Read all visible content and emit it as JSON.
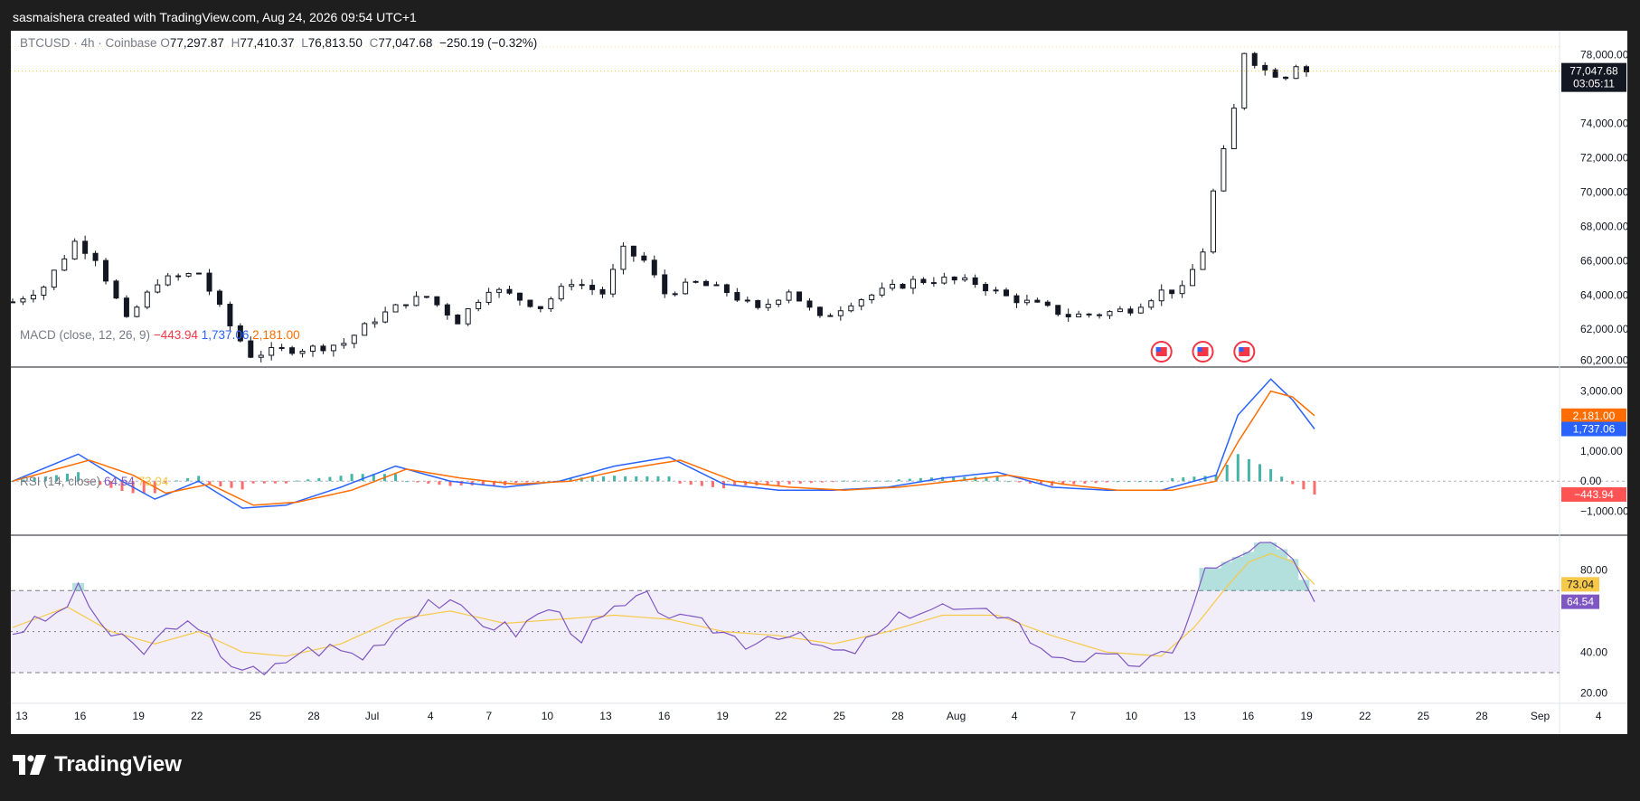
{
  "header": {
    "attribution": "sasmaishera created with TradingView.com, Aug 24, 2026 09:54 UTC+1"
  },
  "brand": {
    "name": "TradingView",
    "icon": "tradingview-logo-icon"
  },
  "legend": {
    "symbol": "BTCUSD · 4h · Coinbase",
    "o_label": "O",
    "o": "77,297.87",
    "h_label": "H",
    "h": "77,410.37",
    "l_label": "L",
    "l": "76,813.50",
    "c_label": "C",
    "c": "77,047.68",
    "change": "−250.19 (−0.32%)"
  },
  "macd_legend": {
    "name": "MACD (close, 12, 26, 9)",
    "hist": "−443.94",
    "macd": "1,737.06",
    "signal": "2,181.00"
  },
  "rsi_legend": {
    "name": "RSI (14, close)",
    "rsi": "64.54",
    "ma": "73.04"
  },
  "colors": {
    "up": "#131722",
    "macd_line": "#2962ff",
    "signal_line": "#ff6d00",
    "hist_pos": "#26a69a",
    "hist_neg": "#ff5252",
    "rsi_line": "#7e57c2",
    "rsi_ma": "#f7c948",
    "last_label": "#131722"
  },
  "chart_data": [
    {
      "type": "candlestick",
      "title": "BTCUSD · 4h · Coinbase",
      "x_ticks": [
        "13",
        "16",
        "19",
        "22",
        "25",
        "28",
        "Jul",
        "4",
        "7",
        "10",
        "13",
        "16",
        "19",
        "22",
        "25",
        "28",
        "Aug",
        "4",
        "7",
        "10",
        "13",
        "16",
        "19",
        "22",
        "25",
        "28",
        "Sep",
        "4"
      ],
      "y_ticks": [
        "60,200.00",
        "62,000.00",
        "64,000.00",
        "66,000.00",
        "68,000.00",
        "70,000.00",
        "72,000.00",
        "74,000.00",
        "78,000.00"
      ],
      "ylim": [
        59800,
        79400
      ],
      "last_price": "77,047.68",
      "countdown": "03:05:11",
      "anchors": [
        [
          0,
          63600
        ],
        [
          3,
          64500
        ],
        [
          6,
          67100
        ],
        [
          8,
          66200
        ],
        [
          11,
          62500
        ],
        [
          14,
          64800
        ],
        [
          18,
          65300
        ],
        [
          21,
          62200
        ],
        [
          23,
          60500
        ],
        [
          26,
          60800
        ],
        [
          29,
          60900
        ],
        [
          32,
          61200
        ],
        [
          35,
          62600
        ],
        [
          38,
          63600
        ],
        [
          40,
          63900
        ],
        [
          43,
          62500
        ],
        [
          46,
          64400
        ],
        [
          48,
          64000
        ],
        [
          51,
          63300
        ],
        [
          54,
          64800
        ],
        [
          57,
          64100
        ],
        [
          59,
          66600
        ],
        [
          61,
          66000
        ],
        [
          63,
          64100
        ],
        [
          66,
          64700
        ],
        [
          69,
          64200
        ],
        [
          72,
          63100
        ],
        [
          75,
          64300
        ],
        [
          78,
          62600
        ],
        [
          81,
          63600
        ],
        [
          84,
          64200
        ],
        [
          87,
          64800
        ],
        [
          90,
          64900
        ],
        [
          93,
          64700
        ],
        [
          96,
          63900
        ],
        [
          99,
          63400
        ],
        [
          102,
          62800
        ],
        [
          105,
          62900
        ],
        [
          108,
          63200
        ],
        [
          111,
          64200
        ],
        [
          113,
          64300
        ],
        [
          115,
          66600
        ],
        [
          116,
          70000
        ],
        [
          117,
          72300
        ],
        [
          118,
          74800
        ],
        [
          119,
          78200
        ],
        [
          120,
          77600
        ],
        [
          121,
          77100
        ],
        [
          122,
          76900
        ],
        [
          123,
          76800
        ],
        [
          124,
          77500
        ],
        [
          125,
          77050
        ]
      ],
      "events": [
        {
          "index": 111,
          "icon": "us-flag-icon"
        },
        {
          "index": 115,
          "icon": "us-flag-icon"
        },
        {
          "index": 119,
          "icon": "us-flag-icon"
        }
      ]
    },
    {
      "type": "line",
      "title": "MACD (close, 12, 26, 9)",
      "y_ticks": [
        "3,000.00",
        "1,000.00",
        "0.00",
        "−1,000.00"
      ],
      "ylim": [
        -1800,
        3800
      ],
      "macd_anchors": [
        [
          0,
          0
        ],
        [
          6,
          900
        ],
        [
          10,
          0
        ],
        [
          13,
          -600
        ],
        [
          17,
          0
        ],
        [
          21,
          -900
        ],
        [
          25,
          -800
        ],
        [
          30,
          -200
        ],
        [
          35,
          500
        ],
        [
          40,
          0
        ],
        [
          45,
          -200
        ],
        [
          50,
          0
        ],
        [
          55,
          500
        ],
        [
          60,
          800
        ],
        [
          65,
          -100
        ],
        [
          70,
          -300
        ],
        [
          75,
          -300
        ],
        [
          80,
          -200
        ],
        [
          85,
          100
        ],
        [
          90,
          300
        ],
        [
          95,
          -200
        ],
        [
          100,
          -300
        ],
        [
          105,
          -300
        ],
        [
          110,
          200
        ],
        [
          112,
          2200
        ],
        [
          115,
          3400
        ],
        [
          117,
          2700
        ],
        [
          119,
          1737
        ]
      ],
      "signal_anchors": [
        [
          0,
          0
        ],
        [
          7,
          700
        ],
        [
          11,
          200
        ],
        [
          14,
          -400
        ],
        [
          18,
          -100
        ],
        [
          22,
          -800
        ],
        [
          26,
          -700
        ],
        [
          31,
          -300
        ],
        [
          36,
          400
        ],
        [
          41,
          100
        ],
        [
          46,
          -100
        ],
        [
          51,
          0
        ],
        [
          56,
          400
        ],
        [
          61,
          700
        ],
        [
          66,
          0
        ],
        [
          71,
          -200
        ],
        [
          76,
          -300
        ],
        [
          81,
          -200
        ],
        [
          86,
          0
        ],
        [
          91,
          200
        ],
        [
          96,
          -100
        ],
        [
          101,
          -300
        ],
        [
          106,
          -300
        ],
        [
          110,
          0
        ],
        [
          112,
          1300
        ],
        [
          115,
          3000
        ],
        [
          117,
          2800
        ],
        [
          119,
          2181
        ]
      ],
      "last_macd": "1,737.06",
      "last_signal": "2,181.00",
      "last_hist": "−443.94"
    },
    {
      "type": "line",
      "title": "RSI (14, close)",
      "y_ticks": [
        "80.00",
        "40.00",
        "20.00"
      ],
      "bands": [
        30,
        50,
        70
      ],
      "ylim": [
        15,
        97
      ],
      "rsi_anchors": [
        [
          0,
          50
        ],
        [
          4,
          58
        ],
        [
          6,
          70
        ],
        [
          9,
          48
        ],
        [
          12,
          40
        ],
        [
          15,
          55
        ],
        [
          18,
          46
        ],
        [
          20,
          35
        ],
        [
          23,
          28
        ],
        [
          26,
          40
        ],
        [
          29,
          42
        ],
        [
          32,
          38
        ],
        [
          35,
          52
        ],
        [
          38,
          66
        ],
        [
          40,
          62
        ],
        [
          43,
          55
        ],
        [
          46,
          50
        ],
        [
          49,
          62
        ],
        [
          52,
          48
        ],
        [
          55,
          60
        ],
        [
          58,
          66
        ],
        [
          61,
          55
        ],
        [
          64,
          52
        ],
        [
          67,
          45
        ],
        [
          70,
          50
        ],
        [
          73,
          44
        ],
        [
          76,
          38
        ],
        [
          79,
          48
        ],
        [
          82,
          60
        ],
        [
          85,
          62
        ],
        [
          88,
          58
        ],
        [
          91,
          60
        ],
        [
          94,
          40
        ],
        [
          97,
          38
        ],
        [
          100,
          36
        ],
        [
          103,
          35
        ],
        [
          106,
          38
        ],
        [
          109,
          80
        ],
        [
          111,
          82
        ],
        [
          113,
          91
        ],
        [
          115,
          92
        ],
        [
          117,
          84
        ],
        [
          119,
          64.5
        ]
      ],
      "ma_anchors": [
        [
          0,
          52
        ],
        [
          5,
          62
        ],
        [
          9,
          50
        ],
        [
          13,
          44
        ],
        [
          17,
          50
        ],
        [
          21,
          40
        ],
        [
          25,
          38
        ],
        [
          30,
          44
        ],
        [
          35,
          56
        ],
        [
          40,
          60
        ],
        [
          45,
          54
        ],
        [
          50,
          56
        ],
        [
          55,
          58
        ],
        [
          60,
          56
        ],
        [
          65,
          50
        ],
        [
          70,
          48
        ],
        [
          75,
          44
        ],
        [
          80,
          50
        ],
        [
          85,
          58
        ],
        [
          90,
          58
        ],
        [
          95,
          48
        ],
        [
          100,
          40
        ],
        [
          105,
          38
        ],
        [
          108,
          52
        ],
        [
          111,
          72
        ],
        [
          113,
          84
        ],
        [
          115,
          88
        ],
        [
          117,
          84
        ],
        [
          119,
          73
        ]
      ],
      "last_rsi": "64.54",
      "last_ma": "73.04"
    }
  ]
}
